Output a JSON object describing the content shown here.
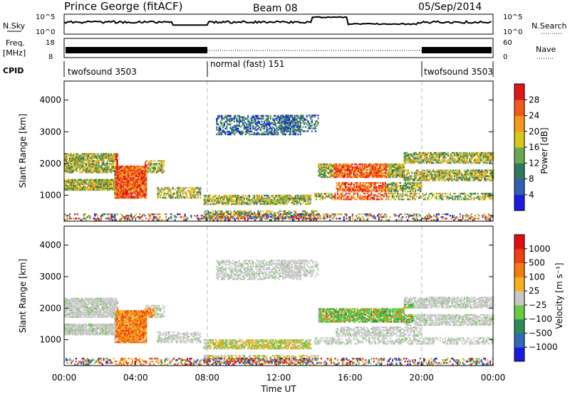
{
  "header": {
    "station": "Prince George (fitACF)",
    "beam": "Beam 08",
    "date": "05/Sep/2014"
  },
  "strip_labels": {
    "nsky": "N.Sky",
    "nsearch": "N.Search",
    "freq": "Freq.",
    "freq_unit": "[MHz]",
    "nave": "Nave",
    "cpid": "CPID",
    "nsky_ticks": [
      "10^5",
      "10^0"
    ],
    "freq_ticks": [
      "18",
      "8"
    ],
    "nave_ticks": [
      "60",
      "0"
    ]
  },
  "cpid_segments": [
    {
      "label": "twofsound 3503",
      "start_hour": 0
    },
    {
      "label": "normal (fast) 151",
      "start_hour": 8
    },
    {
      "label": "twofsound 3503",
      "start_hour": 20
    }
  ],
  "chart_data": [
    {
      "type": "heatmap",
      "panel": "power",
      "ylabel": "Slant Range [km]",
      "ylim": [
        180,
        4600
      ],
      "yticks": [
        "1000",
        "2000",
        "3000",
        "4000"
      ],
      "xlim_hours": [
        0,
        24
      ],
      "colorbar": {
        "label": "Power [dB]",
        "ticks": [
          "4",
          "8",
          "12",
          "16",
          "20",
          "24",
          "28"
        ],
        "colors": [
          "#1a1ae0",
          "#2f5fb0",
          "#2f7a5e",
          "#6aa84f",
          "#d8c81a",
          "#f59a1a",
          "#f25a1a",
          "#e01818"
        ]
      }
    },
    {
      "type": "heatmap",
      "panel": "velocity",
      "ylabel": "Slant Range [km]",
      "ylim": [
        180,
        4600
      ],
      "yticks": [
        "1000",
        "2000",
        "3000",
        "4000"
      ],
      "xlim_hours": [
        0,
        24
      ],
      "xlabel": "Time UT",
      "xticks": [
        "00:00",
        "04:00",
        "08:00",
        "12:00",
        "16:00",
        "20:00",
        "00:00"
      ],
      "colorbar": {
        "label": "Velocity [m s⁻¹]",
        "ticks": [
          "1000",
          "500",
          "100",
          "25",
          "−25",
          "−100",
          "−500",
          "−1000"
        ],
        "colors": [
          "#1a1ae0",
          "#2f6ab8",
          "#2e8b57",
          "#66cc44",
          "#c8c8c8",
          "#f5b020",
          "#f57a10",
          "#f04010",
          "#e01010"
        ]
      }
    }
  ]
}
